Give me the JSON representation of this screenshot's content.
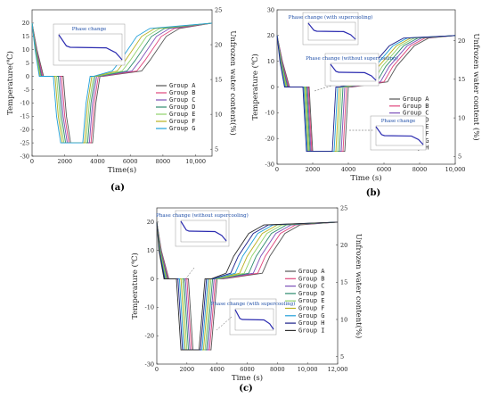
{
  "colors": [
    "#555555",
    "#e0457b",
    "#7b4fb8",
    "#2e8b6e",
    "#8fd16a",
    "#b8b020",
    "#1f9fd8",
    "#1a1f8a",
    "#2f2f2f"
  ],
  "chart_data": [
    {
      "type": "line",
      "panel_label": "(a)",
      "xlabel": "Time(s)",
      "ylabel": "Temperature(℃)",
      "y2label": "Unfrozen water content(%)",
      "xlim": [
        0,
        11000
      ],
      "ylim": [
        -30,
        25
      ],
      "y2lim": [
        4,
        25
      ],
      "x_ticks": [
        "0",
        "2000",
        "4000",
        "6000",
        "8000",
        "10,000"
      ],
      "y_ticks": [
        "-30",
        "-25",
        "-20",
        "-15",
        "-10",
        "-5",
        "0",
        "5",
        "10",
        "15",
        "20"
      ],
      "y2_ticks": [
        "5",
        "10",
        "15",
        "20",
        "25"
      ],
      "series_names": [
        "Group A",
        "Group B",
        "Group C",
        "Group D",
        "Group E",
        "Group F",
        "Group G"
      ],
      "series": [
        {
          "name": "Group A",
          "x": [
            0,
            300,
            700,
            1150,
            1900,
            2100,
            2350,
            2900,
            3700,
            3900,
            4150,
            4350,
            6700,
            7200,
            8200,
            9000,
            11000
          ],
          "y": [
            20,
            10,
            0,
            0,
            0,
            -15,
            -25,
            -25,
            -25,
            -10,
            0,
            0,
            2,
            6,
            15,
            18,
            20
          ]
        },
        {
          "name": "Group B",
          "x": [
            0,
            280,
            650,
            1100,
            1800,
            2000,
            2250,
            2800,
            3600,
            3800,
            4050,
            4250,
            6400,
            6900,
            7900,
            8700,
            11000
          ],
          "y": [
            20,
            10,
            0,
            0,
            0,
            -15,
            -25,
            -25,
            -25,
            -10,
            0,
            0,
            2,
            6,
            15,
            18,
            20
          ]
        },
        {
          "name": "Group C",
          "x": [
            0,
            260,
            600,
            1050,
            1700,
            1900,
            2150,
            2700,
            3500,
            3700,
            3950,
            4150,
            6100,
            6600,
            7600,
            8400,
            11000
          ],
          "y": [
            20,
            10,
            0,
            0,
            0,
            -15,
            -25,
            -25,
            -25,
            -10,
            0,
            0,
            2,
            6,
            15,
            18,
            20
          ]
        },
        {
          "name": "Group D",
          "x": [
            0,
            240,
            560,
            1000,
            1600,
            1800,
            2050,
            2600,
            3400,
            3600,
            3850,
            4050,
            5800,
            6300,
            7300,
            8100,
            11000
          ],
          "y": [
            20,
            10,
            0,
            0,
            0,
            -15,
            -25,
            -25,
            -25,
            -10,
            0,
            0,
            2,
            6,
            15,
            18,
            20
          ]
        },
        {
          "name": "Group E",
          "x": [
            0,
            220,
            520,
            950,
            1500,
            1700,
            1950,
            2500,
            3300,
            3500,
            3750,
            3950,
            5500,
            6000,
            7000,
            7800,
            11000
          ],
          "y": [
            20,
            10,
            0,
            0,
            0,
            -15,
            -25,
            -25,
            -25,
            -10,
            0,
            0,
            2,
            6,
            15,
            18,
            20
          ]
        },
        {
          "name": "Group F",
          "x": [
            0,
            200,
            480,
            900,
            1400,
            1600,
            1850,
            2400,
            3200,
            3400,
            3650,
            3850,
            5200,
            5700,
            6700,
            7500,
            11000
          ],
          "y": [
            20,
            10,
            0,
            0,
            0,
            -15,
            -25,
            -25,
            -25,
            -10,
            0,
            0,
            2,
            6,
            15,
            18,
            20
          ]
        },
        {
          "name": "Group G",
          "x": [
            0,
            180,
            440,
            850,
            1300,
            1500,
            1750,
            2300,
            3100,
            3300,
            3550,
            3750,
            4900,
            5400,
            6400,
            7200,
            11000
          ],
          "y": [
            20,
            10,
            0,
            0,
            0,
            -15,
            -25,
            -25,
            -25,
            -10,
            0,
            0,
            2,
            6,
            15,
            18,
            20
          ]
        }
      ],
      "inset_titles": [
        "Phase change"
      ]
    },
    {
      "type": "line",
      "panel_label": "(b)",
      "xlabel": "Time (s)",
      "ylabel": "Temperature (℃)",
      "y2label": "Unfrozen water content (%)",
      "xlim": [
        0,
        10000
      ],
      "ylim": [
        -30,
        30
      ],
      "y2lim": [
        4,
        24
      ],
      "x_ticks": [
        "0",
        "2000",
        "4000",
        "6000",
        "8000",
        "10,000"
      ],
      "y_ticks": [
        "-30",
        "-20",
        "-10",
        "0",
        "10",
        "20",
        "30"
      ],
      "y2_ticks": [
        "5",
        "10",
        "15",
        "20"
      ],
      "series_names": [
        "Group A",
        "Group B",
        "Group C",
        "Group D",
        "Group E",
        "Group F",
        "Group G",
        "Group H"
      ],
      "series": [
        {
          "name": "Group A",
          "x": [
            0,
            300,
            700,
            1200,
            1800,
            2000,
            3800,
            4000,
            4200,
            6200,
            6700,
            7700,
            8500,
            10000
          ],
          "y": [
            20,
            10,
            0,
            0,
            0,
            -25,
            -25,
            0,
            0,
            2,
            8,
            16,
            19,
            20
          ]
        },
        {
          "name": "Group B",
          "x": [
            0,
            280,
            660,
            1150,
            1750,
            1950,
            3700,
            3900,
            4100,
            6000,
            6500,
            7500,
            8300,
            10000
          ],
          "y": [
            20,
            10,
            0,
            0,
            0,
            -25,
            -25,
            0,
            0,
            2,
            8,
            16,
            19,
            20
          ]
        },
        {
          "name": "Group C",
          "x": [
            0,
            260,
            620,
            1100,
            1700,
            1900,
            3600,
            3800,
            4000,
            5800,
            6300,
            7300,
            8100,
            10000
          ],
          "y": [
            20,
            10,
            0,
            0,
            0,
            -25,
            -25,
            0,
            0,
            2,
            8,
            16,
            19,
            20
          ]
        },
        {
          "name": "Group D",
          "x": [
            0,
            240,
            580,
            1050,
            1650,
            1850,
            3500,
            3700,
            3900,
            5600,
            6100,
            7100,
            7900,
            10000
          ],
          "y": [
            20,
            10,
            0,
            0,
            0,
            -25,
            -25,
            0,
            0,
            2,
            8,
            16,
            19,
            20
          ]
        },
        {
          "name": "Group E",
          "x": [
            0,
            220,
            540,
            1000,
            1600,
            1800,
            3400,
            3600,
            3800,
            5400,
            5900,
            6900,
            7700,
            10000
          ],
          "y": [
            20,
            10,
            0,
            0,
            0,
            -25,
            -25,
            0,
            0,
            2,
            8,
            16,
            19,
            20
          ]
        },
        {
          "name": "Group F",
          "x": [
            0,
            200,
            500,
            950,
            1550,
            1750,
            3300,
            3500,
            3700,
            5200,
            5700,
            6700,
            7500,
            10000
          ],
          "y": [
            20,
            10,
            0,
            0,
            0,
            -25,
            -25,
            0,
            0,
            2,
            8,
            16,
            19,
            20
          ]
        },
        {
          "name": "Group G",
          "x": [
            0,
            180,
            460,
            900,
            1500,
            1700,
            3200,
            3400,
            3600,
            5000,
            5500,
            6500,
            7300,
            10000
          ],
          "y": [
            20,
            10,
            0,
            0,
            0,
            -25,
            -25,
            0,
            0,
            2,
            8,
            16,
            19,
            20
          ]
        },
        {
          "name": "Group H",
          "x": [
            0,
            160,
            420,
            850,
            1450,
            1650,
            3100,
            3300,
            3500,
            4800,
            5300,
            6300,
            7100,
            10000
          ],
          "y": [
            20,
            10,
            0,
            0,
            0,
            -25,
            -25,
            0,
            0,
            2,
            8,
            16,
            19,
            20
          ]
        }
      ],
      "inset_titles": [
        "Phase change (with supercooling)",
        "Phase change (without supercooling)",
        "Phase change"
      ]
    },
    {
      "type": "line",
      "panel_label": "(c)",
      "xlabel": "Time (s)",
      "ylabel": "Temperature (℃)",
      "y2label": "Unfrozen water content(%)",
      "xlim": [
        0,
        12000
      ],
      "ylim": [
        -30,
        25
      ],
      "y2lim": [
        4,
        25
      ],
      "x_ticks": [
        "0",
        "2000",
        "4000",
        "6000",
        "8000",
        "10,000",
        "12,000"
      ],
      "y_ticks": [
        "-30",
        "-20",
        "-10",
        "0",
        "10",
        "20"
      ],
      "y2_ticks": [
        "5",
        "10",
        "15",
        "20",
        "25"
      ],
      "series_names": [
        "Group A",
        "Group B",
        "Group C",
        "Group D",
        "Group E",
        "Group F",
        "Group G",
        "Group H",
        "Group I"
      ],
      "series": [
        {
          "name": "Group A",
          "x": [
            0,
            300,
            800,
            1300,
            2100,
            2400,
            3200,
            3600,
            4000,
            4400,
            7000,
            7500,
            8500,
            9500,
            12000
          ],
          "y": [
            20,
            10,
            0,
            0,
            0,
            -25,
            -25,
            -25,
            0,
            0,
            2,
            8,
            16,
            19,
            20
          ]
        },
        {
          "name": "Group B",
          "x": [
            0,
            280,
            760,
            1250,
            2000,
            2300,
            3100,
            3500,
            3900,
            4300,
            6700,
            7200,
            8200,
            9200,
            12000
          ],
          "y": [
            20,
            10,
            0,
            0,
            0,
            -25,
            -25,
            -25,
            0,
            0,
            2,
            8,
            16,
            19,
            20
          ]
        },
        {
          "name": "Group C",
          "x": [
            0,
            260,
            720,
            1200,
            1900,
            2200,
            3000,
            3400,
            3800,
            4200,
            6400,
            6900,
            7900,
            8900,
            12000
          ],
          "y": [
            20,
            10,
            0,
            0,
            0,
            -25,
            -25,
            -25,
            0,
            0,
            2,
            8,
            16,
            19,
            20
          ]
        },
        {
          "name": "Group D",
          "x": [
            0,
            240,
            680,
            1150,
            1800,
            2100,
            2900,
            3300,
            3700,
            4100,
            6100,
            6600,
            7600,
            8600,
            12000
          ],
          "y": [
            20,
            10,
            0,
            0,
            0,
            -25,
            -25,
            -25,
            0,
            0,
            2,
            8,
            16,
            19,
            20
          ]
        },
        {
          "name": "Group E",
          "x": [
            0,
            220,
            640,
            1100,
            1700,
            2000,
            2800,
            3200,
            3600,
            4000,
            5800,
            6300,
            7300,
            8300,
            12000
          ],
          "y": [
            20,
            10,
            0,
            0,
            0,
            -25,
            -25,
            -25,
            0,
            0,
            2,
            8,
            16,
            19,
            20
          ]
        },
        {
          "name": "Group F",
          "x": [
            0,
            200,
            600,
            1050,
            1600,
            1900,
            2700,
            3100,
            3500,
            3900,
            5500,
            6000,
            7000,
            8000,
            12000
          ],
          "y": [
            20,
            10,
            0,
            0,
            0,
            -25,
            -25,
            -25,
            0,
            0,
            2,
            8,
            16,
            19,
            20
          ]
        },
        {
          "name": "Group G",
          "x": [
            0,
            180,
            560,
            1000,
            1500,
            1800,
            2600,
            3000,
            3400,
            3800,
            5200,
            5700,
            6700,
            7700,
            12000
          ],
          "y": [
            20,
            10,
            0,
            0,
            0,
            -25,
            -25,
            -25,
            0,
            0,
            2,
            8,
            16,
            19,
            20
          ]
        },
        {
          "name": "Group H",
          "x": [
            0,
            160,
            520,
            950,
            1400,
            1700,
            2500,
            2900,
            3300,
            3700,
            4900,
            5400,
            6400,
            7400,
            12000
          ],
          "y": [
            20,
            10,
            0,
            0,
            0,
            -25,
            -25,
            -25,
            0,
            0,
            2,
            8,
            16,
            19,
            20
          ]
        },
        {
          "name": "Group I",
          "x": [
            0,
            140,
            480,
            900,
            1300,
            1600,
            2400,
            2800,
            3200,
            3600,
            4600,
            5100,
            6100,
            7100,
            12000
          ],
          "y": [
            20,
            10,
            0,
            0,
            0,
            -25,
            -25,
            -25,
            0,
            0,
            2,
            8,
            16,
            19,
            20
          ]
        }
      ],
      "inset_titles": [
        "Phase change (without supercooling)",
        "Phase change (with supercooling)"
      ]
    }
  ]
}
